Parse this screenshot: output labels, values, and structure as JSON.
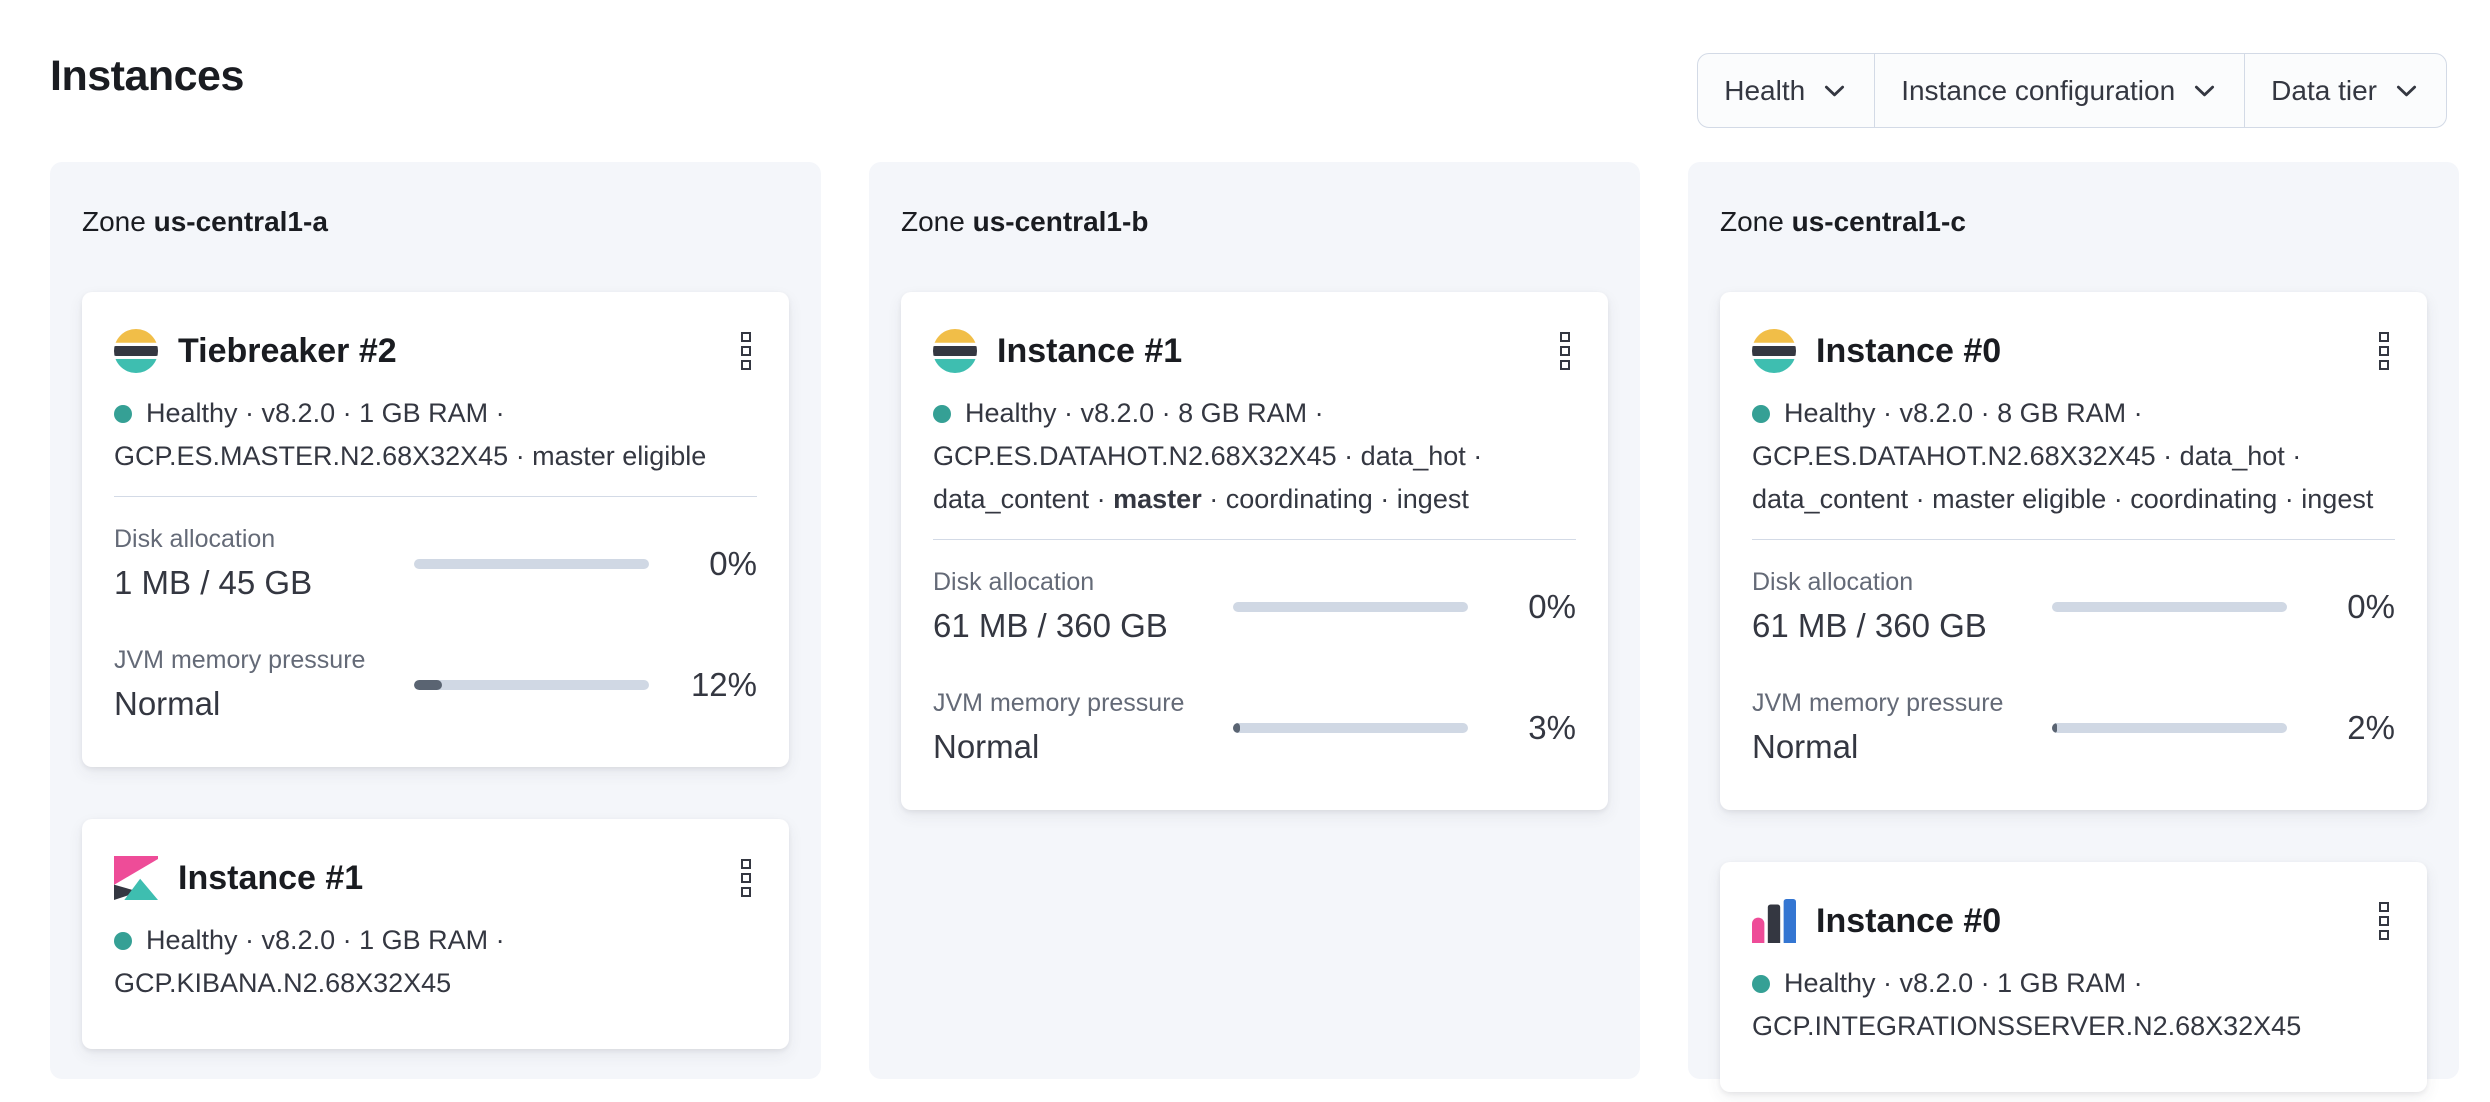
{
  "page": {
    "title": "Instances"
  },
  "filters": [
    {
      "id": "health",
      "label": "Health"
    },
    {
      "id": "instance-configuration",
      "label": "Instance configuration"
    },
    {
      "id": "data-tier",
      "label": "Data tier"
    }
  ],
  "colors": {
    "health_dot": "#35a095",
    "panel_bg": "#f4f6fa",
    "bar_track": "#d0d8e4",
    "bar_fill": "#5a6472",
    "es_yellow": "#f1be48",
    "es_dark": "#343741",
    "es_teal": "#3ebeb0",
    "kibana_pink": "#ee4c98",
    "integrations_pink": "#ee4c98",
    "integrations_blue": "#3476d2"
  },
  "zones": [
    {
      "label_prefix": "Zone",
      "name": "us-central1-a",
      "cards": [
        {
          "product": "elasticsearch",
          "title": "Tiebreaker #2",
          "health": "Healthy",
          "meta_lines": [
            [
              {
                "t": "Healthy · v8.2.0 · 1 GB RAM ·"
              }
            ],
            [
              {
                "t": "GCP.ES.MASTER.N2.68X32X45 · master eligible"
              }
            ]
          ],
          "metrics": [
            {
              "label": "Disk allocation",
              "value": "1 MB / 45 GB",
              "percent_label": "0%",
              "fill_pct": 0
            },
            {
              "label": "JVM memory pressure",
              "value": "Normal",
              "percent_label": "12%",
              "fill_pct": 12
            }
          ]
        },
        {
          "product": "kibana",
          "title": "Instance #1",
          "health": "Healthy",
          "meta_lines": [
            [
              {
                "t": "Healthy · v8.2.0 · 1 GB RAM ·"
              }
            ],
            [
              {
                "t": "GCP.KIBANA.N2.68X32X45"
              }
            ]
          ],
          "metrics": []
        }
      ]
    },
    {
      "label_prefix": "Zone",
      "name": "us-central1-b",
      "cards": [
        {
          "product": "elasticsearch",
          "title": "Instance #1",
          "health": "Healthy",
          "meta_lines": [
            [
              {
                "t": "Healthy · v8.2.0 · 8 GB RAM ·"
              }
            ],
            [
              {
                "t": "GCP.ES.DATAHOT.N2.68X32X45 · data_hot ·"
              }
            ],
            [
              {
                "t": "data_content · "
              },
              {
                "t": "master",
                "b": true
              },
              {
                "t": " · coordinating · ingest"
              }
            ]
          ],
          "metrics": [
            {
              "label": "Disk allocation",
              "value": "61 MB / 360 GB",
              "percent_label": "0%",
              "fill_pct": 0
            },
            {
              "label": "JVM memory pressure",
              "value": "Normal",
              "percent_label": "3%",
              "fill_pct": 3
            }
          ]
        }
      ]
    },
    {
      "label_prefix": "Zone",
      "name": "us-central1-c",
      "cards": [
        {
          "product": "elasticsearch",
          "title": "Instance #0",
          "health": "Healthy",
          "meta_lines": [
            [
              {
                "t": "Healthy · v8.2.0 · 8 GB RAM ·"
              }
            ],
            [
              {
                "t": "GCP.ES.DATAHOT.N2.68X32X45 · data_hot ·"
              }
            ],
            [
              {
                "t": "data_content · master eligible · coordinating · ingest"
              }
            ]
          ],
          "metrics": [
            {
              "label": "Disk allocation",
              "value": "61 MB / 360 GB",
              "percent_label": "0%",
              "fill_pct": 0
            },
            {
              "label": "JVM memory pressure",
              "value": "Normal",
              "percent_label": "2%",
              "fill_pct": 2
            }
          ]
        },
        {
          "product": "integrations_server",
          "title": "Instance #0",
          "health": "Healthy",
          "meta_lines": [
            [
              {
                "t": "Healthy · v8.2.0 · 1 GB RAM ·"
              }
            ],
            [
              {
                "t": "GCP.INTEGRATIONSSERVER.N2.68X32X45"
              }
            ]
          ],
          "metrics": []
        }
      ]
    }
  ]
}
